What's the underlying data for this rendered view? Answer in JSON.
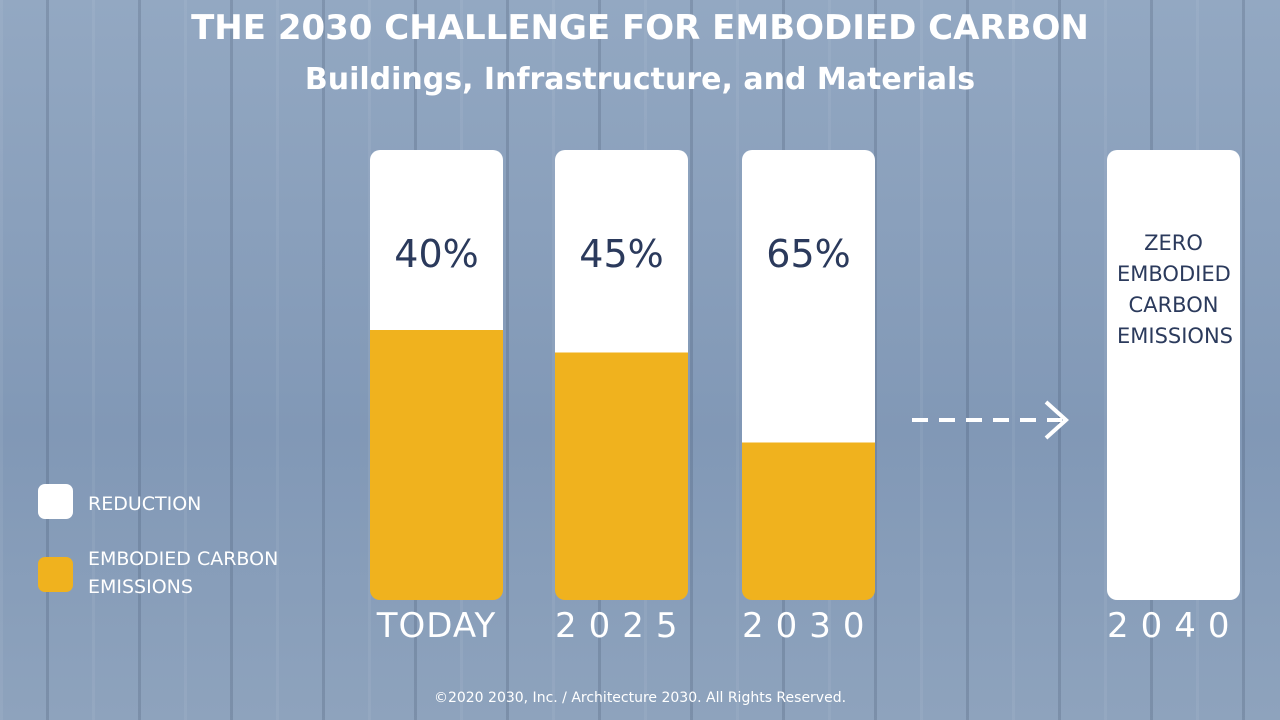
{
  "chart_data": {
    "type": "bar",
    "stacked": true,
    "title": "THE 2030 CHALLENGE FOR EMBODIED CARBON",
    "subtitle": "Buildings, Infrastructure, and Materials",
    "categories": [
      "TODAY",
      "2025",
      "2030",
      "2040"
    ],
    "ylim": [
      0,
      100
    ],
    "series": [
      {
        "name": "REDUCTION",
        "color": "#ffffff",
        "values": [
          40,
          45,
          65,
          100
        ],
        "value_labels": [
          "40%",
          "45%",
          "65%",
          "ZERO EMBODIED CARBON EMISSIONS"
        ]
      },
      {
        "name": "EMBODIED CARBON EMISSIONS",
        "color": "#f0b21e",
        "values": [
          60,
          55,
          35,
          0
        ]
      }
    ],
    "footer": "©2020  2030, Inc. / Architecture 2030. All Rights Reserved."
  }
}
